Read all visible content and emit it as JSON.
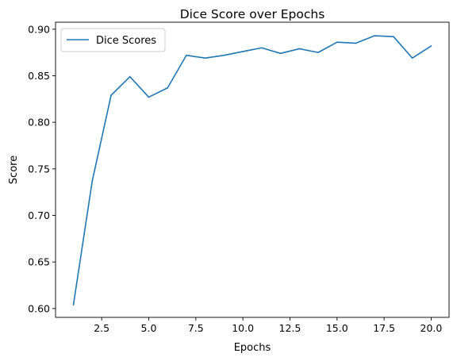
{
  "chart_data": {
    "type": "line",
    "title": "Dice Score over Epochs",
    "xlabel": "Epochs",
    "ylabel": "Score",
    "xlim": [
      0.05,
      20.95
    ],
    "ylim": [
      0.5905,
      0.9075
    ],
    "xticks": [
      2.5,
      5.0,
      7.5,
      10.0,
      12.5,
      15.0,
      17.5,
      20.0
    ],
    "xtick_labels": [
      "2.5",
      "5.0",
      "7.5",
      "10.0",
      "12.5",
      "15.0",
      "17.5",
      "20.0"
    ],
    "yticks": [
      0.6,
      0.65,
      0.7,
      0.75,
      0.8,
      0.85,
      0.9
    ],
    "ytick_labels": [
      "0.60",
      "0.65",
      "0.70",
      "0.75",
      "0.80",
      "0.85",
      "0.90"
    ],
    "grid": false,
    "legend": {
      "position": "top-left"
    },
    "series": [
      {
        "name": "Dice Scores",
        "color": "#1f77b4",
        "x": [
          1,
          2,
          3,
          4,
          5,
          6,
          7,
          8,
          9,
          10,
          11,
          12,
          13,
          14,
          15,
          16,
          17,
          18,
          19,
          20
        ],
        "y": [
          0.604,
          0.737,
          0.829,
          0.849,
          0.827,
          0.837,
          0.872,
          0.869,
          0.872,
          0.876,
          0.88,
          0.874,
          0.879,
          0.875,
          0.886,
          0.885,
          0.893,
          0.892,
          0.869,
          0.882
        ]
      }
    ]
  }
}
